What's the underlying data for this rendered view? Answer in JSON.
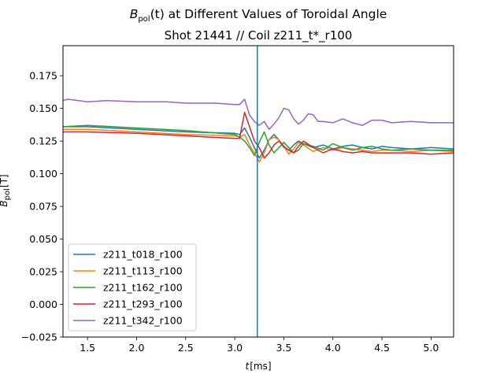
{
  "chart_data": {
    "type": "line",
    "title": {
      "prefix": "B",
      "subscript": "pol",
      "suffix": "(t) at Different Values of Toroidal Angle",
      "line2": "Shot 21441 // Coil z211_t*_r100"
    },
    "xlabel": {
      "symbol": "t",
      "unit": "[ms]"
    },
    "ylabel": {
      "symbol": "B",
      "subscript": "pol",
      "unit": "[T]"
    },
    "xlim": [
      1.25,
      5.23
    ],
    "ylim": [
      -0.025,
      0.198
    ],
    "xticks": [
      1.5,
      2.0,
      2.5,
      3.0,
      3.5,
      4.0,
      4.5,
      5.0
    ],
    "xtick_labels": [
      "1.5",
      "2.0",
      "2.5",
      "3.0",
      "3.5",
      "4.0",
      "4.5",
      "5.0"
    ],
    "yticks": [
      -0.025,
      0.0,
      0.025,
      0.05,
      0.075,
      0.1,
      0.125,
      0.15,
      0.175
    ],
    "ytick_labels": [
      "−0.025",
      "0.000",
      "0.025",
      "0.050",
      "0.075",
      "0.100",
      "0.125",
      "0.150",
      "0.175"
    ],
    "vline": {
      "x": 3.23,
      "color": "#1f77b4"
    },
    "legend_position": "lower-left",
    "grid": false,
    "series": [
      {
        "name": "z211_t018_r100",
        "color": "#1f77b4",
        "x": [
          1.25,
          1.5,
          2.0,
          2.5,
          3.0,
          3.05,
          3.1,
          3.15,
          3.2,
          3.25,
          3.3,
          3.35,
          3.4,
          3.45,
          3.5,
          3.55,
          3.6,
          3.65,
          3.7,
          3.8,
          3.9,
          4.0,
          4.1,
          4.2,
          4.3,
          4.4,
          4.5,
          4.6,
          4.8,
          5.0,
          5.23
        ],
        "y": [
          0.136,
          0.136,
          0.134,
          0.132,
          0.131,
          0.13,
          0.135,
          0.128,
          0.12,
          0.112,
          0.118,
          0.126,
          0.13,
          0.126,
          0.12,
          0.118,
          0.122,
          0.125,
          0.123,
          0.12,
          0.122,
          0.119,
          0.121,
          0.122,
          0.12,
          0.119,
          0.121,
          0.12,
          0.119,
          0.12,
          0.119
        ]
      },
      {
        "name": "z211_t113_r100",
        "color": "#ff7f0e",
        "x": [
          1.25,
          1.5,
          2.0,
          2.5,
          3.0,
          3.05,
          3.1,
          3.15,
          3.2,
          3.25,
          3.3,
          3.35,
          3.4,
          3.45,
          3.5,
          3.55,
          3.6,
          3.65,
          3.7,
          3.8,
          3.9,
          4.0,
          4.1,
          4.2,
          4.3,
          4.4,
          4.5,
          4.6,
          4.8,
          5.0,
          5.23
        ],
        "y": [
          0.134,
          0.134,
          0.132,
          0.13,
          0.129,
          0.128,
          0.13,
          0.122,
          0.116,
          0.109,
          0.116,
          0.126,
          0.128,
          0.126,
          0.121,
          0.115,
          0.119,
          0.124,
          0.122,
          0.117,
          0.12,
          0.118,
          0.12,
          0.119,
          0.118,
          0.117,
          0.118,
          0.118,
          0.117,
          0.118,
          0.117
        ]
      },
      {
        "name": "z211_t162_r100",
        "color": "#2ca02c",
        "x": [
          1.25,
          1.5,
          2.0,
          2.5,
          3.0,
          3.05,
          3.1,
          3.15,
          3.2,
          3.25,
          3.3,
          3.35,
          3.4,
          3.45,
          3.5,
          3.55,
          3.6,
          3.65,
          3.7,
          3.8,
          3.9,
          4.0,
          4.1,
          4.2,
          4.3,
          4.4,
          4.5,
          4.6,
          4.8,
          5.0,
          5.23
        ],
        "y": [
          0.136,
          0.137,
          0.135,
          0.133,
          0.13,
          0.128,
          0.125,
          0.12,
          0.114,
          0.124,
          0.132,
          0.122,
          0.116,
          0.12,
          0.124,
          0.12,
          0.116,
          0.118,
          0.123,
          0.121,
          0.118,
          0.123,
          0.12,
          0.118,
          0.12,
          0.121,
          0.119,
          0.118,
          0.119,
          0.118,
          0.118
        ]
      },
      {
        "name": "z211_t293_r100",
        "color": "#d62728",
        "x": [
          1.25,
          1.5,
          2.0,
          2.5,
          3.0,
          3.05,
          3.1,
          3.15,
          3.2,
          3.25,
          3.3,
          3.35,
          3.4,
          3.45,
          3.5,
          3.55,
          3.6,
          3.65,
          3.7,
          3.8,
          3.9,
          4.0,
          4.1,
          4.2,
          4.3,
          4.4,
          4.5,
          4.6,
          4.8,
          5.0,
          5.23
        ],
        "y": [
          0.132,
          0.132,
          0.131,
          0.129,
          0.127,
          0.127,
          0.147,
          0.136,
          0.125,
          0.12,
          0.112,
          0.116,
          0.122,
          0.125,
          0.121,
          0.118,
          0.116,
          0.121,
          0.125,
          0.12,
          0.116,
          0.119,
          0.117,
          0.116,
          0.117,
          0.116,
          0.116,
          0.116,
          0.116,
          0.115,
          0.116
        ]
      },
      {
        "name": "z211_t342_r100",
        "color": "#9467bd",
        "x": [
          1.25,
          1.3,
          1.5,
          1.7,
          2.0,
          2.3,
          2.5,
          2.8,
          3.0,
          3.05,
          3.1,
          3.15,
          3.2,
          3.25,
          3.3,
          3.35,
          3.4,
          3.45,
          3.5,
          3.55,
          3.6,
          3.65,
          3.7,
          3.75,
          3.8,
          3.85,
          3.9,
          4.0,
          4.1,
          4.2,
          4.3,
          4.4,
          4.5,
          4.6,
          4.8,
          5.0,
          5.23
        ],
        "y": [
          0.156,
          0.157,
          0.155,
          0.156,
          0.155,
          0.155,
          0.154,
          0.154,
          0.153,
          0.153,
          0.157,
          0.145,
          0.14,
          0.137,
          0.14,
          0.134,
          0.138,
          0.143,
          0.15,
          0.149,
          0.142,
          0.138,
          0.141,
          0.146,
          0.145,
          0.14,
          0.14,
          0.139,
          0.142,
          0.139,
          0.137,
          0.141,
          0.141,
          0.139,
          0.14,
          0.139,
          0.139
        ]
      }
    ]
  }
}
